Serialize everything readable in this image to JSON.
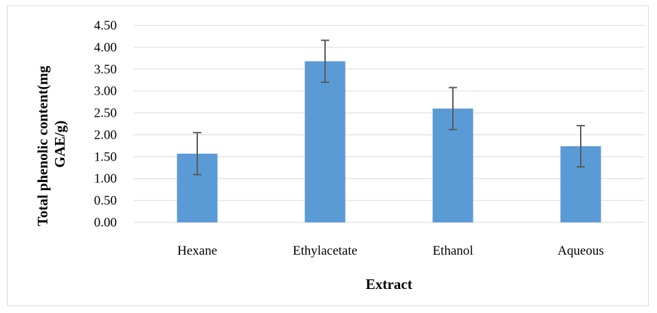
{
  "chart_data": {
    "type": "bar",
    "title": "",
    "xlabel": "Extract",
    "ylabel_lines": [
      "Total phenolic content(mg",
      "GAE/g)"
    ],
    "categories": [
      "Hexane",
      "Ethylacetate",
      "Ethanol",
      "Aqueous"
    ],
    "values": [
      1.57,
      3.68,
      2.6,
      1.74
    ],
    "error": [
      0.48,
      0.48,
      0.48,
      0.47
    ],
    "ylim": [
      0,
      4.5
    ],
    "yticks": [
      "0.00",
      "0.50",
      "1.00",
      "1.50",
      "2.00",
      "2.50",
      "3.00",
      "3.50",
      "4.00",
      "4.50"
    ],
    "grid": true,
    "legend": "none",
    "colors": {
      "bar": "#5b9bd5",
      "error_bar": "#595959",
      "grid": "#d9d9d9"
    }
  }
}
